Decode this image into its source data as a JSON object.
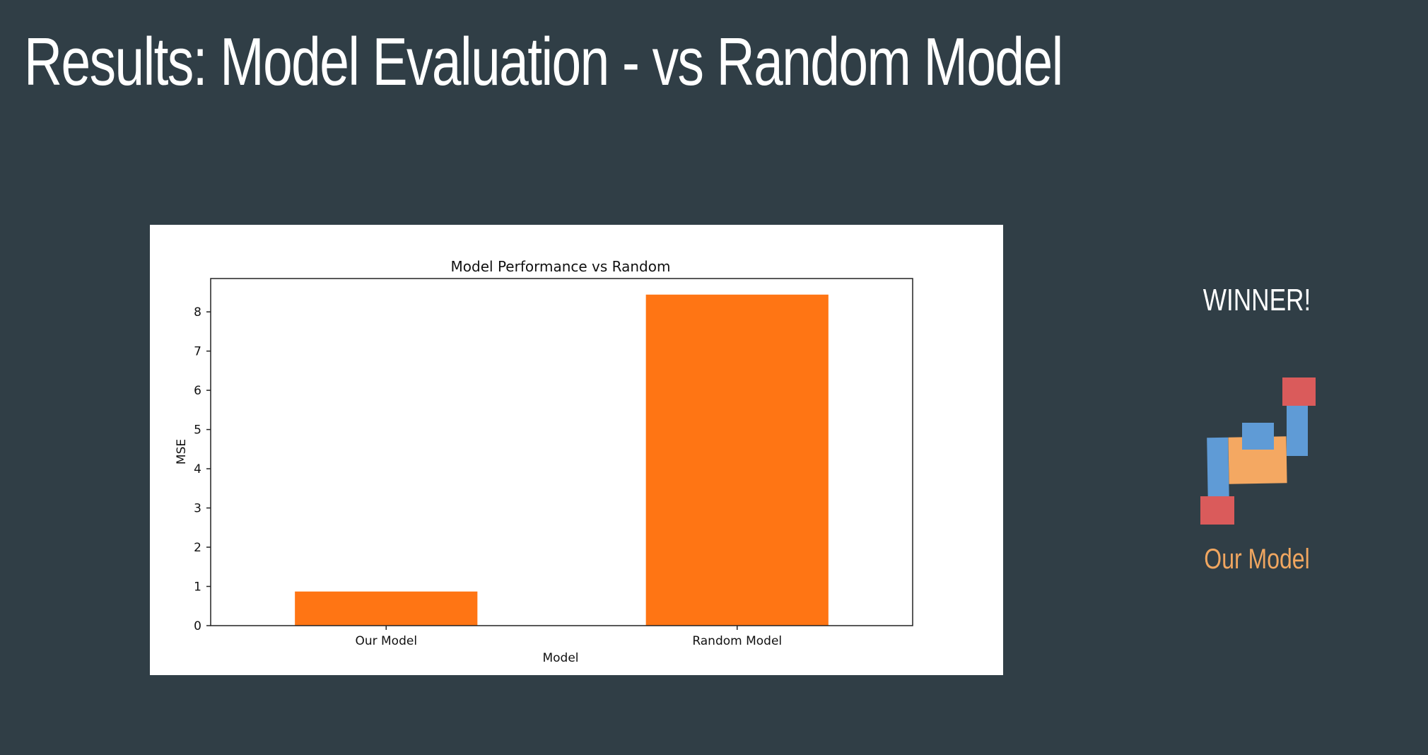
{
  "slide": {
    "title": "Results: Model Evaluation - vs Random Model"
  },
  "winner": {
    "heading": "WINNER!",
    "name": "Our Model",
    "graphic_icon": "blocks-trophy-icon",
    "colors": {
      "blue": "#5f9bd6",
      "orange": "#f4a862",
      "red": "#da5b5b",
      "name_text": "#f0a660"
    }
  },
  "chart_data": {
    "type": "bar",
    "title": "Model Performance vs Random",
    "xlabel": "Model",
    "ylabel": "MSE",
    "categories": [
      "Our Model",
      "Random Model"
    ],
    "values": [
      0.87,
      8.44
    ],
    "ylim": [
      0,
      8.85
    ],
    "yticks": [
      0,
      1,
      2,
      3,
      4,
      5,
      6,
      7,
      8
    ],
    "bar_color": "#ff7514",
    "grid": false,
    "legend": "none"
  }
}
